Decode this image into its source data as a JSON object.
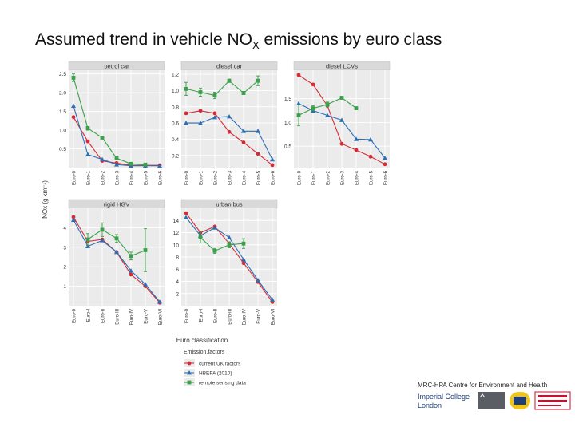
{
  "title": {
    "main": "Assumed trend in vehicle NO",
    "sub": "X",
    "tail": " emissions by euro class"
  },
  "footer": {
    "centre": "MRC-HPA Centre for Environment and Health",
    "imperial_line1": "Imperial College",
    "imperial_line2": "London"
  },
  "logos": [
    "mrc-logo",
    "hpa-logo",
    "kings-college-logo"
  ],
  "chart_data": {
    "type": "line",
    "ylabel": "NOx (g km⁻¹)",
    "xlabel": "Euro classification",
    "legend": {
      "title": "Emission.factors",
      "entries": [
        "current UK factors",
        "HBEFA (2010)",
        "remote sensing data"
      ],
      "placement": "bottom"
    },
    "colors": {
      "current UK factors": "#d62b35",
      "HBEFA (2010)": "#2c6fb3",
      "remote sensing data": "#3aa14a"
    },
    "panels": [
      {
        "title": "petrol car",
        "categories": [
          "Euro-0",
          "Euro-1",
          "Euro-2",
          "Euro-3",
          "Euro-4",
          "Euro-5",
          "Euro-6"
        ],
        "ylim": [
          0,
          2.6
        ],
        "yticks": [
          "0.5",
          "1.0",
          "1.5",
          "2.0",
          "2.5"
        ],
        "ytick_values": [
          0.5,
          1.0,
          1.5,
          2.0,
          2.5
        ],
        "series": [
          {
            "name": "current UK factors",
            "values": [
              1.35,
              0.7,
              0.18,
              0.12,
              0.06,
              0.06,
              0.06
            ]
          },
          {
            "name": "HBEFA (2010)",
            "values": [
              1.65,
              0.35,
              0.22,
              0.08,
              0.05,
              0.05,
              0.05
            ]
          },
          {
            "name": "remote sensing data",
            "values": [
              2.4,
              1.05,
              0.8,
              0.25,
              0.1,
              0.08,
              null
            ],
            "err": [
              0.1,
              0.05,
              0.03,
              0.02,
              0.02,
              0.02,
              null
            ]
          }
        ]
      },
      {
        "title": "diesel car",
        "categories": [
          "Euro-0",
          "Euro-1",
          "Euro-2",
          "Euro-3",
          "Euro-4",
          "Euro-5",
          "Euro-6"
        ],
        "ylim": [
          0.05,
          1.25
        ],
        "yticks": [
          "0.2",
          "0.4",
          "0.6",
          "0.8",
          "1.0",
          "1.2"
        ],
        "ytick_values": [
          0.2,
          0.4,
          0.6,
          0.8,
          1.0,
          1.2
        ],
        "series": [
          {
            "name": "current UK factors",
            "values": [
              0.72,
              0.75,
              0.72,
              0.49,
              0.36,
              0.22,
              0.08
            ]
          },
          {
            "name": "HBEFA (2010)",
            "values": [
              0.6,
              0.6,
              0.67,
              0.68,
              0.5,
              0.5,
              0.15
            ]
          },
          {
            "name": "remote sensing data",
            "values": [
              1.02,
              0.98,
              0.94,
              1.12,
              0.97,
              1.12,
              null
            ],
            "err": [
              0.08,
              0.05,
              0.04,
              0.02,
              0.02,
              0.06,
              null
            ]
          }
        ]
      },
      {
        "title": "diesel LCVs",
        "categories": [
          "Euro-0",
          "Euro-1",
          "Euro-2",
          "Euro-3",
          "Euro-4",
          "Euro-5",
          "Euro-6"
        ],
        "ylim": [
          0.05,
          2.1
        ],
        "yticks": [
          "0.5",
          "1.0",
          "1.5"
        ],
        "ytick_values": [
          0.5,
          1.0,
          1.5
        ],
        "series": [
          {
            "name": "current UK factors",
            "values": [
              2.0,
              1.8,
              1.35,
              0.55,
              0.42,
              0.28,
              0.12
            ]
          },
          {
            "name": "HBEFA (2010)",
            "values": [
              1.4,
              1.25,
              1.15,
              1.05,
              0.65,
              0.64,
              0.25
            ]
          },
          {
            "name": "remote sensing data",
            "values": [
              1.15,
              1.3,
              1.38,
              1.52,
              1.3,
              null,
              null
            ],
            "err": [
              0.22,
              0.05,
              0.05,
              0.03,
              0.03,
              null,
              null
            ]
          }
        ]
      },
      {
        "title": "rigid HGV",
        "categories": [
          "Euro-0",
          "Euro-I",
          "Euro-II",
          "Euro-III",
          "Euro-IV",
          "Euro-V",
          "Euro-VI"
        ],
        "ylim": [
          0,
          5.0
        ],
        "yticks": [
          "1",
          "2",
          "3",
          "4"
        ],
        "ytick_values": [
          1,
          2,
          3,
          4
        ],
        "series": [
          {
            "name": "current UK factors",
            "values": [
              4.55,
              3.3,
              3.4,
              2.75,
              1.6,
              1.0,
              0.15
            ]
          },
          {
            "name": "HBEFA (2010)",
            "values": [
              4.4,
              3.05,
              3.35,
              2.75,
              1.8,
              1.1,
              0.2
            ]
          },
          {
            "name": "remote sensing data",
            "values": [
              null,
              3.4,
              3.9,
              3.45,
              2.55,
              2.85,
              null
            ],
            "err": [
              null,
              0.3,
              0.35,
              0.2,
              0.2,
              1.1,
              null
            ]
          }
        ]
      },
      {
        "title": "urban bus",
        "categories": [
          "Euro-0",
          "Euro-I",
          "Euro-II",
          "Euro-III",
          "Euro-IV",
          "Euro-V",
          "Euro-VI"
        ],
        "ylim": [
          0,
          16
        ],
        "yticks": [
          "2",
          "4",
          "6",
          "8",
          "10",
          "12",
          "14"
        ],
        "ytick_values": [
          2,
          4,
          6,
          8,
          10,
          12,
          14
        ],
        "series": [
          {
            "name": "current UK factors",
            "values": [
              15.2,
              12.0,
              13.0,
              10.2,
              7.0,
              3.9,
              0.6
            ]
          },
          {
            "name": "HBEFA (2010)",
            "values": [
              14.5,
              11.5,
              12.8,
              11.2,
              7.6,
              4.2,
              1.0
            ]
          },
          {
            "name": "remote sensing data",
            "values": [
              null,
              11.2,
              9.0,
              10.0,
              10.2,
              null,
              null
            ],
            "err": [
              null,
              0.9,
              0.4,
              0.5,
              0.8,
              null,
              null
            ]
          }
        ]
      }
    ]
  }
}
